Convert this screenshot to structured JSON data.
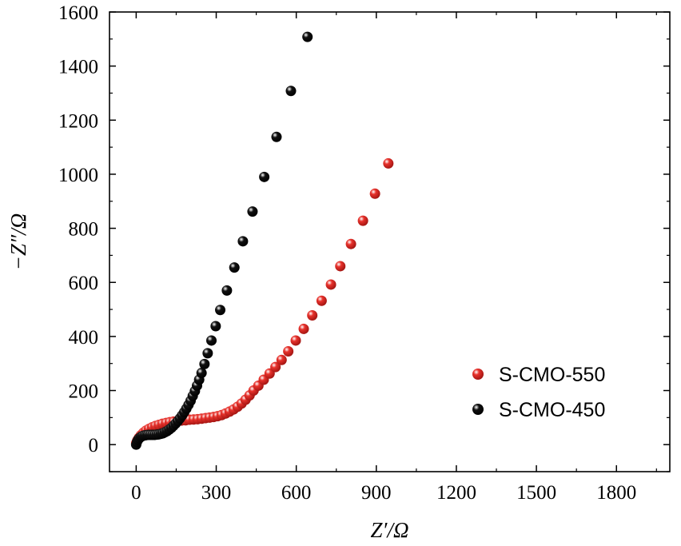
{
  "chart_data": {
    "type": "scatter",
    "title": "",
    "xlabel": "Z′/Ω",
    "ylabel": "−Z″/Ω",
    "xlim": [
      -100,
      2000
    ],
    "ylim": [
      -100,
      1600
    ],
    "xticks": [
      0,
      300,
      600,
      900,
      1200,
      1500,
      1800
    ],
    "yticks": [
      0,
      200,
      400,
      600,
      800,
      1000,
      1200,
      1400,
      1600
    ],
    "grid": false,
    "legend_position": "right",
    "series": [
      {
        "name": "S-CMO-550",
        "color": "#e8322c",
        "points": [
          [
            0,
            5
          ],
          [
            4,
            15
          ],
          [
            10,
            25
          ],
          [
            18,
            35
          ],
          [
            27,
            44
          ],
          [
            37,
            52
          ],
          [
            48,
            58
          ],
          [
            60,
            64
          ],
          [
            72,
            69
          ],
          [
            85,
            73
          ],
          [
            98,
            77
          ],
          [
            112,
            80
          ],
          [
            126,
            83
          ],
          [
            140,
            85
          ],
          [
            155,
            87
          ],
          [
            170,
            89
          ],
          [
            185,
            90
          ],
          [
            200,
            92
          ],
          [
            215,
            93
          ],
          [
            230,
            94
          ],
          [
            245,
            96
          ],
          [
            260,
            98
          ],
          [
            275,
            100
          ],
          [
            290,
            102
          ],
          [
            305,
            105
          ],
          [
            320,
            109
          ],
          [
            335,
            115
          ],
          [
            350,
            122
          ],
          [
            365,
            130
          ],
          [
            380,
            140
          ],
          [
            395,
            152
          ],
          [
            410,
            166
          ],
          [
            425,
            182
          ],
          [
            440,
            200
          ],
          [
            458,
            218
          ],
          [
            478,
            240
          ],
          [
            500,
            263
          ],
          [
            522,
            287
          ],
          [
            545,
            313
          ],
          [
            570,
            345
          ],
          [
            598,
            385
          ],
          [
            628,
            428
          ],
          [
            660,
            478
          ],
          [
            695,
            532
          ],
          [
            730,
            592
          ],
          [
            765,
            660
          ],
          [
            805,
            742
          ],
          [
            850,
            828
          ],
          [
            895,
            928
          ],
          [
            945,
            1040
          ]
        ]
      },
      {
        "name": "S-CMO-450",
        "color": "#111111",
        "points": [
          [
            0,
            0
          ],
          [
            3,
            10
          ],
          [
            7,
            18
          ],
          [
            12,
            24
          ],
          [
            18,
            29
          ],
          [
            24,
            32
          ],
          [
            31,
            34
          ],
          [
            38,
            35
          ],
          [
            45,
            36
          ],
          [
            53,
            36
          ],
          [
            61,
            36
          ],
          [
            69,
            36
          ],
          [
            77,
            37
          ],
          [
            85,
            38
          ],
          [
            93,
            40
          ],
          [
            100,
            42
          ],
          [
            108,
            46
          ],
          [
            116,
            50
          ],
          [
            124,
            56
          ],
          [
            132,
            62
          ],
          [
            140,
            70
          ],
          [
            148,
            78
          ],
          [
            156,
            87
          ],
          [
            164,
            97
          ],
          [
            172,
            108
          ],
          [
            180,
            120
          ],
          [
            188,
            133
          ],
          [
            196,
            147
          ],
          [
            204,
            162
          ],
          [
            212,
            180
          ],
          [
            220,
            198
          ],
          [
            228,
            218
          ],
          [
            236,
            240
          ],
          [
            245,
            265
          ],
          [
            256,
            298
          ],
          [
            268,
            338
          ],
          [
            282,
            385
          ],
          [
            298,
            438
          ],
          [
            315,
            498
          ],
          [
            340,
            570
          ],
          [
            368,
            655
          ],
          [
            400,
            752
          ],
          [
            436,
            862
          ],
          [
            480,
            990
          ],
          [
            526,
            1138
          ],
          [
            580,
            1308
          ],
          [
            642,
            1508
          ]
        ]
      }
    ]
  }
}
